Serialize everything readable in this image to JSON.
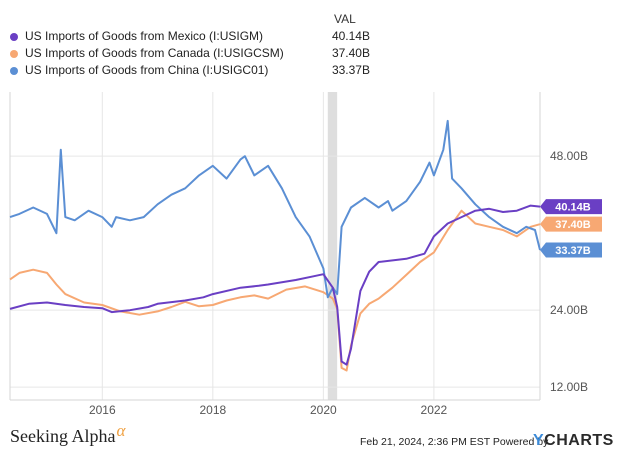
{
  "legend": {
    "val_header": "VAL",
    "series": [
      {
        "label": "US Imports of Goods from Mexico (I:USIGM)",
        "value": "40.14B",
        "color": "#6a3fc4"
      },
      {
        "label": "US Imports of Goods from Canada (I:USIGCSM)",
        "value": "37.40B",
        "color": "#f7a873"
      },
      {
        "label": "US Imports of Goods from China (I:USIGC01)",
        "value": "33.37B",
        "color": "#5b8fd4"
      }
    ]
  },
  "chart_data": {
    "type": "line",
    "title": "",
    "xlabel": "",
    "ylabel": "",
    "units": "Billions USD",
    "x_ticks": [
      "2016",
      "2018",
      "2020",
      "2022"
    ],
    "y_ticks": [
      "12.00B",
      "24.00B",
      "48.00B"
    ],
    "xlim": [
      2014.33,
      2023.92
    ],
    "ylim": [
      10,
      58
    ],
    "recession_band": [
      2020.08,
      2020.25
    ],
    "series": [
      {
        "name": "US Imports of Goods from Mexico (I:USIGM)",
        "color": "#6a3fc4",
        "end_label": "40.14B",
        "x": [
          2014.33,
          2014.67,
          2015.0,
          2015.33,
          2015.67,
          2016.0,
          2016.17,
          2016.5,
          2016.83,
          2017.0,
          2017.5,
          2017.83,
          2018.0,
          2018.5,
          2018.83,
          2019.0,
          2019.5,
          2019.83,
          2020.0,
          2020.17,
          2020.25,
          2020.33,
          2020.42,
          2020.5,
          2020.67,
          2020.83,
          2021.0,
          2021.5,
          2021.83,
          2022.0,
          2022.25,
          2022.5,
          2022.75,
          2023.0,
          2023.25,
          2023.5,
          2023.75,
          2023.92
        ],
        "values": [
          24.2,
          25.0,
          25.2,
          24.8,
          24.5,
          24.3,
          23.7,
          24.0,
          24.5,
          25.0,
          25.5,
          26.0,
          26.5,
          27.5,
          27.8,
          28.0,
          28.7,
          29.3,
          29.6,
          27.5,
          24.5,
          16.0,
          15.5,
          18.0,
          27.0,
          30.0,
          31.5,
          32.0,
          32.8,
          35.5,
          37.5,
          38.5,
          39.5,
          39.8,
          39.3,
          39.5,
          40.3,
          40.14
        ]
      },
      {
        "name": "US Imports of Goods from Canada (I:USIGCSM)",
        "color": "#f7a873",
        "end_label": "37.40B",
        "x": [
          2014.33,
          2014.5,
          2014.75,
          2015.0,
          2015.17,
          2015.33,
          2015.67,
          2016.0,
          2016.33,
          2016.67,
          2017.0,
          2017.25,
          2017.5,
          2017.75,
          2018.0,
          2018.25,
          2018.5,
          2018.75,
          2019.0,
          2019.33,
          2019.67,
          2020.0,
          2020.17,
          2020.25,
          2020.33,
          2020.42,
          2020.5,
          2020.67,
          2020.83,
          2021.0,
          2021.25,
          2021.5,
          2021.75,
          2022.0,
          2022.25,
          2022.5,
          2022.75,
          2023.0,
          2023.25,
          2023.5,
          2023.75,
          2023.92
        ],
        "values": [
          28.8,
          29.8,
          30.3,
          29.8,
          28.0,
          26.5,
          25.2,
          24.8,
          23.8,
          23.3,
          23.8,
          24.5,
          25.3,
          24.6,
          24.8,
          25.5,
          26.0,
          26.3,
          25.8,
          27.2,
          27.7,
          26.8,
          25.8,
          24.2,
          15.0,
          14.6,
          18.5,
          23.5,
          25.0,
          25.8,
          27.5,
          29.5,
          31.5,
          33.0,
          36.5,
          39.5,
          37.5,
          37.0,
          36.5,
          35.5,
          37.0,
          37.4
        ]
      },
      {
        "name": "US Imports of Goods from China (I:USIGC01)",
        "color": "#5b8fd4",
        "end_label": "33.37B",
        "x": [
          2014.33,
          2014.5,
          2014.75,
          2015.0,
          2015.17,
          2015.25,
          2015.33,
          2015.5,
          2015.75,
          2016.0,
          2016.17,
          2016.25,
          2016.5,
          2016.75,
          2017.0,
          2017.25,
          2017.5,
          2017.75,
          2018.0,
          2018.25,
          2018.5,
          2018.58,
          2018.75,
          2019.0,
          2019.25,
          2019.5,
          2019.75,
          2020.0,
          2020.08,
          2020.17,
          2020.25,
          2020.33,
          2020.5,
          2020.75,
          2021.0,
          2021.17,
          2021.25,
          2021.5,
          2021.75,
          2021.92,
          2022.0,
          2022.17,
          2022.25,
          2022.33,
          2022.5,
          2022.75,
          2023.0,
          2023.25,
          2023.5,
          2023.67,
          2023.83,
          2023.92
        ],
        "values": [
          38.5,
          39.0,
          40.0,
          39.0,
          36.0,
          49.0,
          38.5,
          38.0,
          39.5,
          38.5,
          37.0,
          38.5,
          38.0,
          38.5,
          40.5,
          42.0,
          43.0,
          45.0,
          46.5,
          44.5,
          47.5,
          48.0,
          45.0,
          46.5,
          43.0,
          38.5,
          35.5,
          30.5,
          26.0,
          27.5,
          26.5,
          37.0,
          40.0,
          41.5,
          40.0,
          41.0,
          39.5,
          41.0,
          44.0,
          47.0,
          45.0,
          49.0,
          53.5,
          44.5,
          43.0,
          40.5,
          38.5,
          37.0,
          36.0,
          37.0,
          36.5,
          33.37
        ]
      }
    ]
  },
  "footer": {
    "brand": "Seeking Alpha",
    "brand_mark": "α",
    "timestamp": "Feb 21, 2024, 2:36 PM EST Powered by",
    "ycharts_y": "Y",
    "ycharts_rest": "CHARTS"
  }
}
